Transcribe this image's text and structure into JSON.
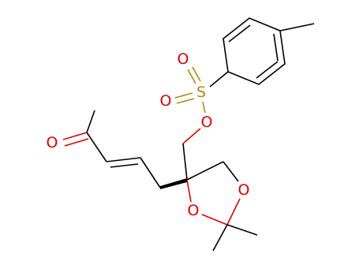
{
  "atoms": [
    {
      "label": "O"
    },
    {
      "label": "S"
    },
    {
      "label": "O"
    },
    {
      "label": "O"
    },
    {
      "label": "O"
    },
    {
      "label": "O"
    },
    {
      "label": "O"
    }
  ]
}
